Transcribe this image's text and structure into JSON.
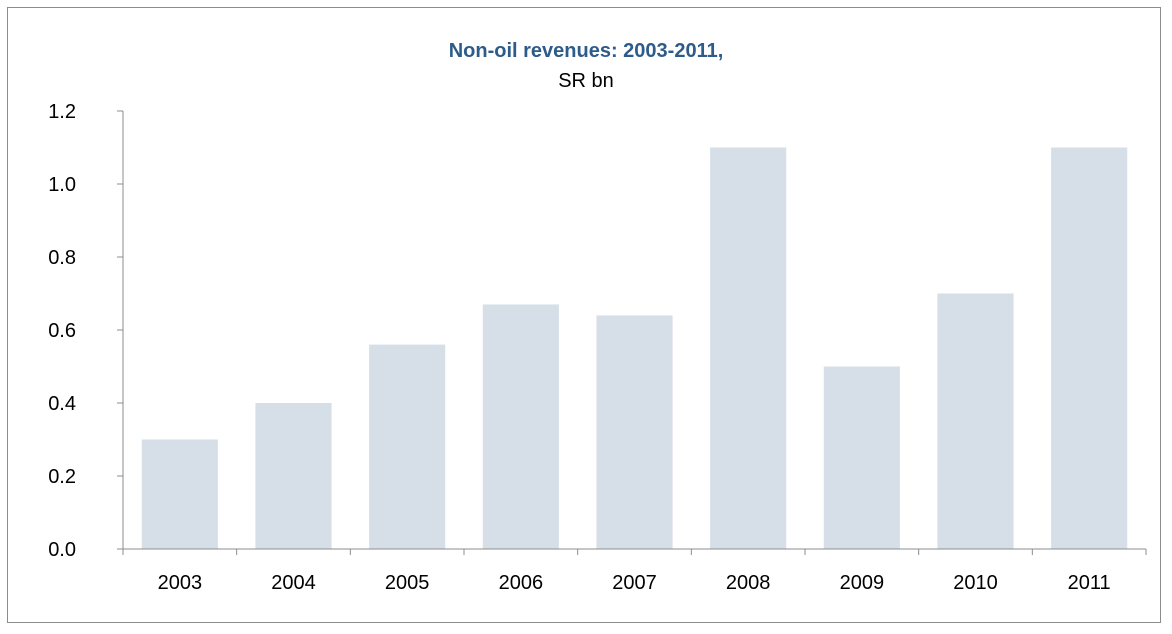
{
  "chart_data": {
    "type": "bar",
    "title": "Non-oil revenues: 2003-2011,",
    "subtitle": "SR bn",
    "xlabel": "",
    "ylabel": "",
    "categories": [
      "2003",
      "2004",
      "2005",
      "2006",
      "2007",
      "2008",
      "2009",
      "2010",
      "2011"
    ],
    "values": [
      0.3,
      0.4,
      0.56,
      0.67,
      0.64,
      1.1,
      0.5,
      0.7,
      1.1
    ],
    "ylim": [
      0,
      1.2
    ],
    "yticks": [
      "0.0",
      "0.2",
      "0.4",
      "0.6",
      "0.8",
      "1.0",
      "1.2"
    ],
    "grid": false,
    "legend": "none",
    "colors": {
      "bar": "#d6dfe8",
      "title": "#2e5c8a",
      "axis": "#8c8c8c"
    }
  }
}
